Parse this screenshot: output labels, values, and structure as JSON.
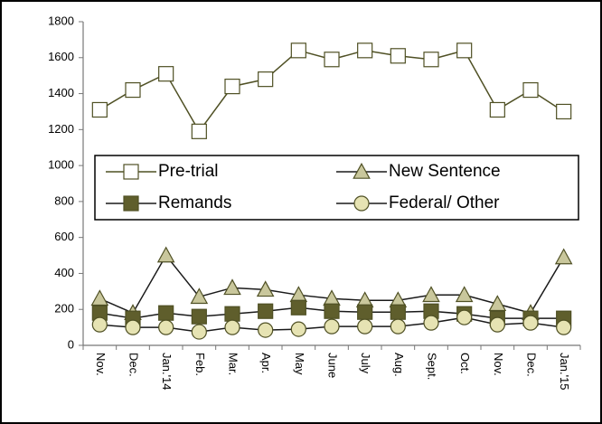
{
  "chart_data": {
    "type": "line",
    "categories": [
      "Nov.",
      "Dec.",
      "Jan.'14",
      "Feb.",
      "Mar.",
      "Apr.",
      "May",
      "June",
      "July",
      "Aug.",
      "Sept.",
      "Oct.",
      "Nov.",
      "Dec.",
      "Jan.'15"
    ],
    "series": [
      {
        "name": "Pre-trial",
        "color": "#4f5024",
        "marker": "square",
        "marker_fill": "#ffffff",
        "values": [
          1310,
          1420,
          1510,
          1190,
          1440,
          1480,
          1640,
          1590,
          1640,
          1610,
          1590,
          1640,
          1310,
          1420,
          1300
        ]
      },
      {
        "name": "New Sentence",
        "color": "#1a1a1a",
        "marker": "triangle",
        "marker_fill": "#c9c79c",
        "values": [
          260,
          180,
          500,
          270,
          320,
          310,
          280,
          260,
          250,
          250,
          280,
          280,
          230,
          180,
          490
        ]
      },
      {
        "name": "Remands",
        "color": "#1a1a1a",
        "marker": "square",
        "marker_fill": "#5f5e2c",
        "values": [
          180,
          150,
          180,
          160,
          175,
          190,
          210,
          190,
          185,
          185,
          190,
          175,
          150,
          150,
          150
        ]
      },
      {
        "name": "Federal/ Other",
        "color": "#1a1a1a",
        "marker": "circle",
        "marker_fill": "#e6e3b3",
        "values": [
          115,
          100,
          100,
          75,
          100,
          85,
          90,
          105,
          105,
          105,
          125,
          155,
          115,
          125,
          100
        ]
      }
    ],
    "ylim": [
      0,
      1800
    ],
    "yticks": [
      0,
      200,
      400,
      600,
      800,
      1000,
      1200,
      1400,
      1600,
      1800
    ],
    "grid": false,
    "legend": "center"
  }
}
